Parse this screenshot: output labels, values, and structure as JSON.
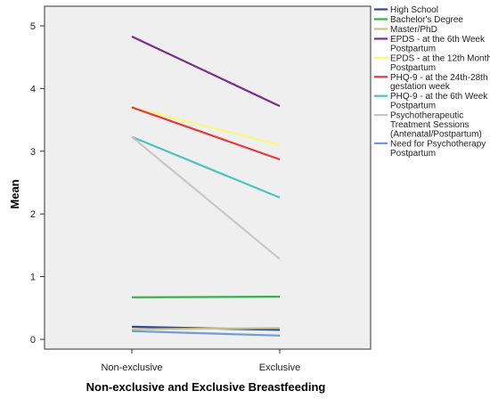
{
  "chart_data": {
    "type": "line",
    "title": "",
    "xlabel": "Non-exclusive and Exclusive Breastfeeding",
    "ylabel": "Mean",
    "categories": [
      "Non-exclusive",
      "Exclusive"
    ],
    "yticks": [
      "0",
      "1",
      "2",
      "3",
      "4",
      "5"
    ],
    "ylim": [
      -0.1,
      5.25
    ],
    "grid": false,
    "legend_position": "right",
    "series": [
      {
        "name": "High School",
        "values": [
          0.2,
          0.15
        ],
        "color": "#2a4a9c"
      },
      {
        "name": "Bachelor's Degree",
        "values": [
          0.67,
          0.68
        ],
        "color": "#33b04a"
      },
      {
        "name": "Master/PhD",
        "values": [
          0.16,
          0.18
        ],
        "color": "#c8c08a"
      },
      {
        "name": "EPDS - at the 6th Week Postpartum",
        "values": [
          4.83,
          3.72
        ],
        "color": "#7b2c8e"
      },
      {
        "name": "EPDS - at the 12th Month Postpartum",
        "values": [
          3.7,
          3.1
        ],
        "color": "#fafa78"
      },
      {
        "name": "PHQ-9 - at the 24th-28th gestation week",
        "values": [
          3.7,
          2.87
        ],
        "color": "#e8383a"
      },
      {
        "name": "PHQ-9 - at the 6th Week Postpartum",
        "values": [
          3.23,
          2.26
        ],
        "color": "#4cc3c3"
      },
      {
        "name": "Psychotherapeutic Treatment Sessions (Antenatal/Postpartum)",
        "values": [
          3.23,
          1.28
        ],
        "color": "#c8c8c8"
      },
      {
        "name": "Need for Psychotherapy Postpartum",
        "values": [
          0.13,
          0.06
        ],
        "color": "#6f9cd6"
      }
    ]
  },
  "legend_lines": [
    [
      "High School"
    ],
    [
      "Bachelor's Degree"
    ],
    [
      "Master/PhD"
    ],
    [
      "EPDS - at the 6th Week",
      "Postpartum"
    ],
    [
      "EPDS - at the 12th Month",
      "Postpartum"
    ],
    [
      "PHQ-9 - at the 24th-28th",
      "gestation week"
    ],
    [
      "PHQ-9 - at the 6th Week",
      "Postpartum"
    ],
    [
      "Psychotherapeutic",
      "Treatment Sessions",
      "(Antenatal/Postpartum)"
    ],
    [
      "Need for Psychotherapy",
      "Postpartum"
    ]
  ],
  "colors": {
    "plot_background": "#efefef",
    "frame": "#333333"
  }
}
